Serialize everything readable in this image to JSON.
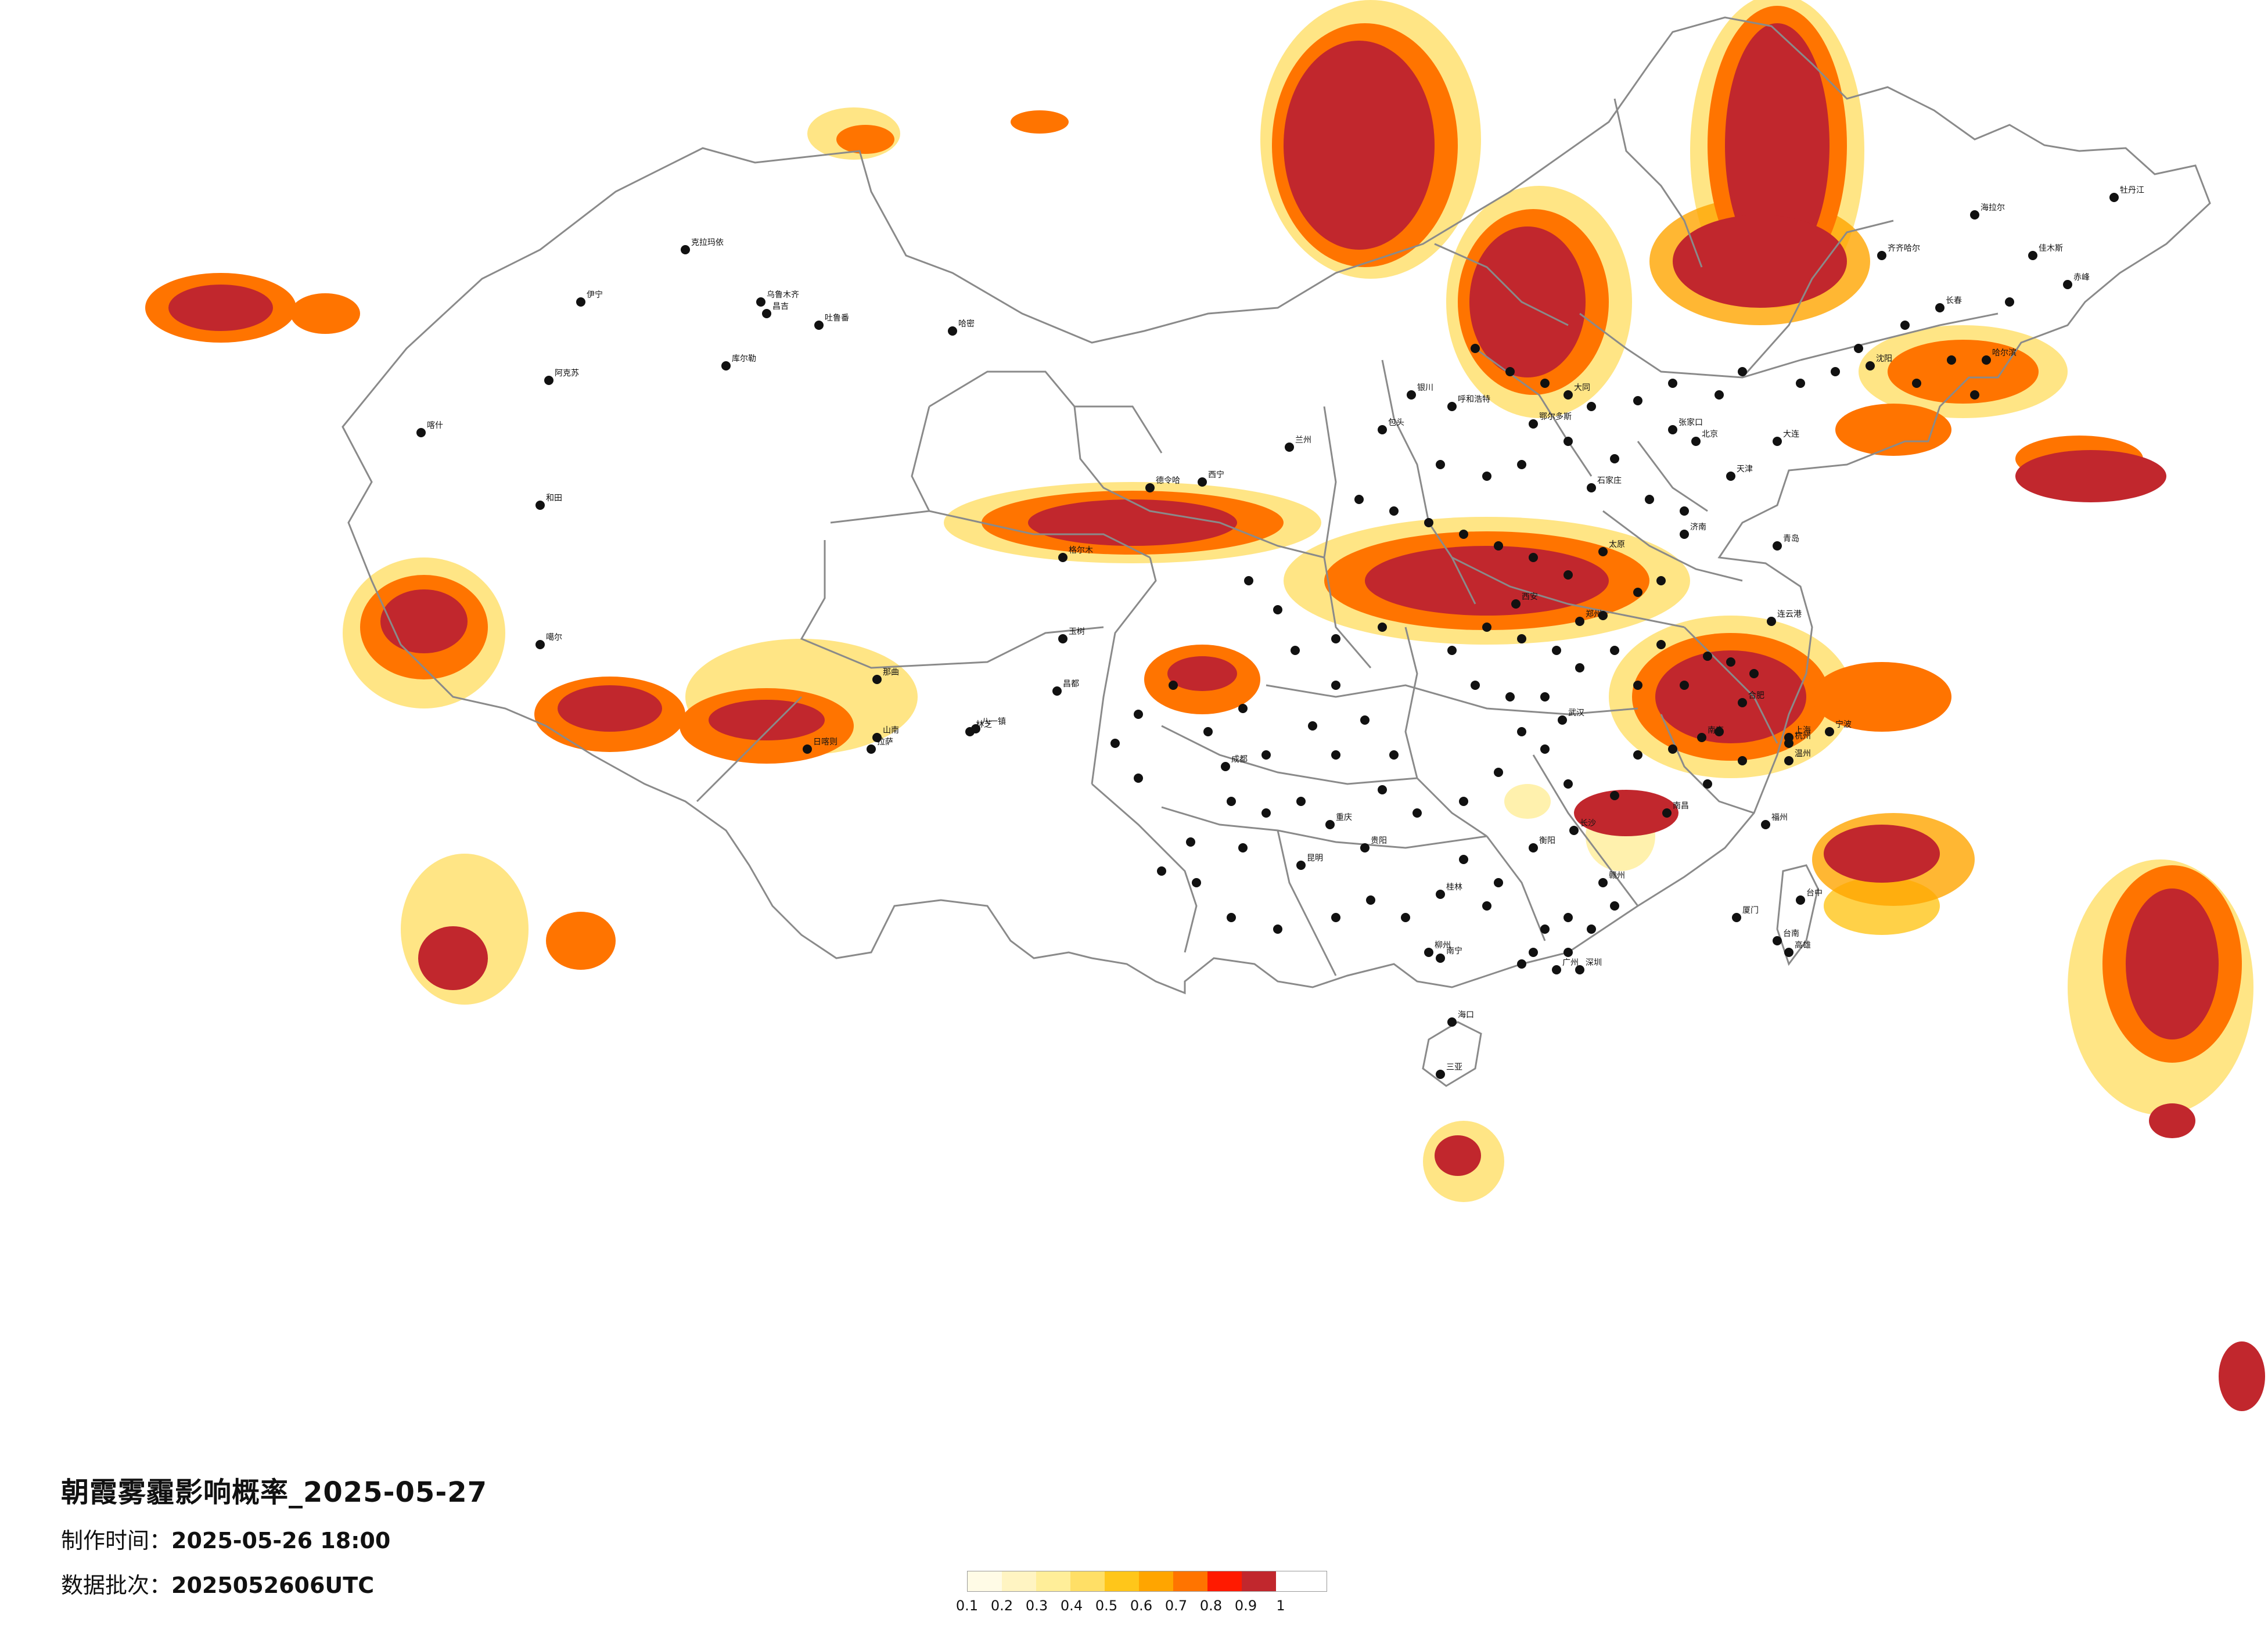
{
  "title": "朝霞雾霾影响概率_2025-05-27",
  "made_time": {
    "label": "制作时间：",
    "value": "2025-05-26 18:00"
  },
  "batch": {
    "label": "数据批次：",
    "value": "2025052606UTC"
  },
  "legend": {
    "ticks": [
      "0.1",
      "0.2",
      "0.3",
      "0.4",
      "0.5",
      "0.6",
      "0.7",
      "0.8",
      "0.9",
      "1"
    ],
    "colors": [
      "#fffbe6",
      "#fff4c2",
      "#ffee99",
      "#ffdf66",
      "#ffc61a",
      "#ffa500",
      "#ff7400",
      "#ff1a00",
      "#c1272d"
    ]
  },
  "cities": [
    "克拉玛依",
    "乌鲁木齐",
    "昌吉",
    "吐鲁番",
    "哈密",
    "库尔勒",
    "阿克苏",
    "喀什",
    "伊宁",
    "和田",
    "噶尔",
    "日喀则",
    "拉萨",
    "山南",
    "林芝",
    "八一镇",
    "那曲",
    "昌都",
    "玉树",
    "格尔木",
    "德令哈",
    "西宁",
    "兰州",
    "银川",
    "呼和浩特",
    "包头",
    "鄂尔多斯",
    "大同",
    "张家口",
    "北京",
    "天津",
    "石家庄",
    "太原",
    "郑州",
    "济南",
    "西安",
    "成都",
    "重庆",
    "贵阳",
    "昆明",
    "南宁",
    "广州",
    "深圳",
    "长沙",
    "武汉",
    "南昌",
    "福州",
    "杭州",
    "上海",
    "南京",
    "合肥",
    "长春",
    "沈阳",
    "哈尔滨",
    "齐齐哈尔",
    "海拉尔",
    "佳木斯",
    "牡丹江",
    "赤峰",
    "大连",
    "青岛",
    "连云港",
    "厦门",
    "台中",
    "台南",
    "高雄",
    "海口",
    "三亚",
    "桂林",
    "柳州",
    "衡阳",
    "赣州",
    "温州",
    "宁波"
  ]
}
